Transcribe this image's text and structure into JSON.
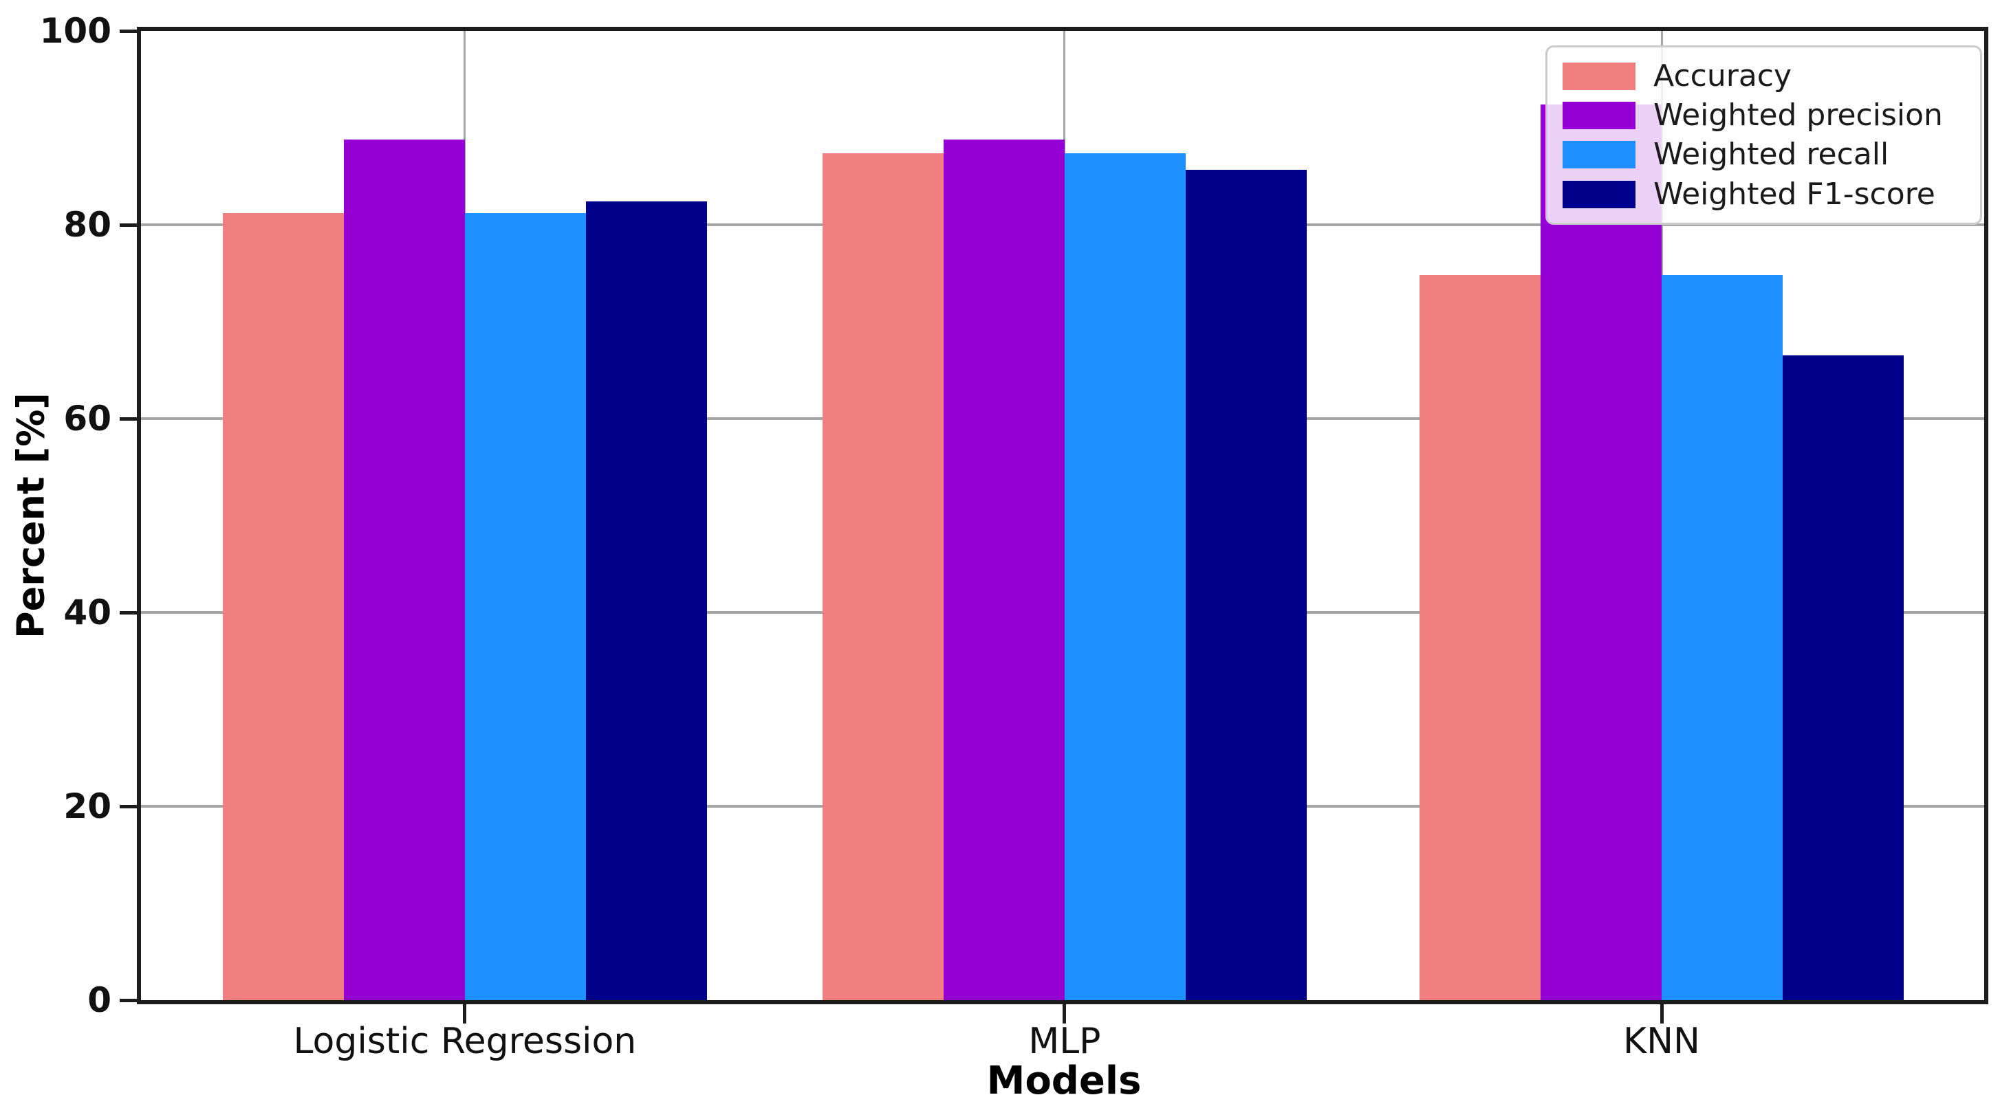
{
  "figure": {
    "background": "#ffffff",
    "spine_color": "#1c1c1c",
    "grid_color": "#a5a5a5"
  },
  "chart_data": {
    "type": "bar",
    "title": "",
    "xlabel": "Models",
    "ylabel": "Percent [%]",
    "categories": [
      "Logistic Regression",
      "MLP",
      "KNN"
    ],
    "series": [
      {
        "name": "Accuracy",
        "color": "#F08080",
        "values": [
          81.2,
          87.4,
          74.8
        ]
      },
      {
        "name": "Weighted precision",
        "color": "#9400D3",
        "values": [
          88.8,
          88.8,
          92.4
        ]
      },
      {
        "name": "Weighted recall",
        "color": "#1E90FF",
        "values": [
          81.2,
          87.4,
          74.8
        ]
      },
      {
        "name": "Weighted F1-score",
        "color": "#00008B",
        "values": [
          82.4,
          85.7,
          66.5
        ]
      }
    ],
    "ylim": [
      0,
      100
    ],
    "y_ticks": [
      0,
      20,
      40,
      60,
      80,
      100
    ],
    "grid": true,
    "legend_position": "upper right",
    "legend_labels": [
      "Accuracy",
      "Weighted precision",
      "Weighted recall",
      "Weighted F1-score"
    ]
  }
}
